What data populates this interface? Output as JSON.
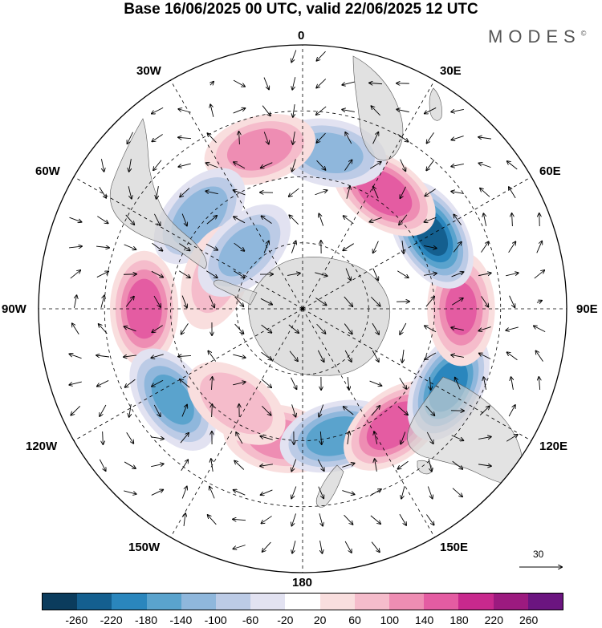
{
  "title": "Base 16/06/2025 00 UTC, valid 22/06/2025 12 UTC",
  "brand": {
    "name": "MODES",
    "mark": "©"
  },
  "longitude_labels": {
    "lon_0": "0",
    "lon_30e": "30E",
    "lon_60e": "60E",
    "lon_90e": "90E",
    "lon_120e": "120E",
    "lon_150e": "150E",
    "lon_180": "180",
    "lon_150w": "150W",
    "lon_120w": "120W",
    "lon_90w": "90W",
    "lon_60w": "60W",
    "lon_30w": "30W"
  },
  "reference_vector": {
    "label": "30"
  },
  "colorbar": {
    "colors": [
      "#0b3c5d",
      "#145f8f",
      "#2a86bd",
      "#5aa3cd",
      "#8fb7dc",
      "#bccbe6",
      "#e2e2f1",
      "#ffffff",
      "#f9dede",
      "#f5bccb",
      "#ee8db3",
      "#e45ca2",
      "#c8298d",
      "#9c1a7f",
      "#6b1580"
    ],
    "ticks": [
      "-260",
      "-220",
      "-180",
      "-140",
      "-100",
      "-60",
      "-20",
      "20",
      "60",
      "100",
      "140",
      "180",
      "220",
      "260"
    ]
  },
  "anomaly_centres": [
    {
      "lon": -170,
      "lat": -50,
      "value": 120,
      "name": "anom-pos-south-pacific-a"
    },
    {
      "lon": 165,
      "lat": -50,
      "value": -170,
      "name": "anom-neg-south-pacific-b"
    },
    {
      "lon": 142,
      "lat": -45,
      "value": 170,
      "name": "anom-pos-tasman"
    },
    {
      "lon": 118,
      "lat": -40,
      "value": -200,
      "name": "anom-neg-southern-australia"
    },
    {
      "lon": 90,
      "lat": -42,
      "value": 140,
      "name": "anom-pos-indian-east"
    },
    {
      "lon": 60,
      "lat": -45,
      "value": -220,
      "name": "anom-neg-indian-south"
    },
    {
      "lon": 35,
      "lat": -47,
      "value": 170,
      "name": "anom-pos-indian-west"
    },
    {
      "lon": 10,
      "lat": -42,
      "value": -120,
      "name": "anom-neg-south-atlantic-east"
    },
    {
      "lon": -15,
      "lat": -40,
      "value": 120,
      "name": "anom-pos-south-atlantic"
    },
    {
      "lon": -48,
      "lat": -48,
      "value": -130,
      "name": "anom-neg-south-america-east"
    },
    {
      "lon": -90,
      "lat": -42,
      "value": 160,
      "name": "anom-pos-southeast-pacific"
    },
    {
      "lon": -125,
      "lat": -42,
      "value": -150,
      "name": "anom-neg-pacific-central"
    },
    {
      "lon": -145,
      "lat": -55,
      "value": 90,
      "name": "anom-pos-pacific-south"
    },
    {
      "lon": -70,
      "lat": -62,
      "value": 70,
      "name": "anom-pos-drake"
    },
    {
      "lon": -45,
      "lat": -65,
      "value": -110,
      "name": "anom-neg-weddell"
    }
  ]
}
